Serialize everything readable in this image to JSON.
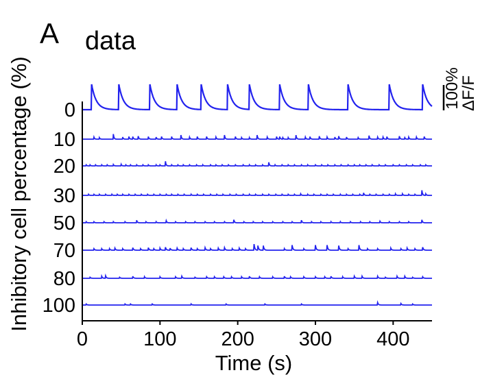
{
  "panel_label": "A",
  "chart_data": {
    "type": "line",
    "title": "data",
    "xlabel": "Time (s)",
    "ylabel": "Inhibitory cell percentage (%)",
    "xlim": [
      0,
      450
    ],
    "x_ticks": [
      0,
      100,
      200,
      300,
      400
    ],
    "scale_bar": {
      "value_label": "100%",
      "unit_label": "ΔF/F",
      "percent": 100
    },
    "line_color": "#2222ee",
    "series": [
      {
        "name": "0",
        "peak_percent": 100,
        "decay_s": 6,
        "spikes": [
          [
            12,
            100
          ],
          [
            47,
            100
          ],
          [
            87,
            100
          ],
          [
            122,
            100
          ],
          [
            153,
            100
          ],
          [
            187,
            100
          ],
          [
            215,
            100
          ],
          [
            254,
            100
          ],
          [
            291,
            100
          ],
          [
            342,
            100
          ],
          [
            395,
            100
          ],
          [
            438,
            100
          ]
        ]
      },
      {
        "name": "10",
        "peak_percent": 20,
        "decay_s": 0.8,
        "spikes": [
          [
            15,
            0.4
          ],
          [
            22,
            0.3
          ],
          [
            40,
            1.0
          ],
          [
            52,
            0.4
          ],
          [
            60,
            0.5
          ],
          [
            65,
            0.5
          ],
          [
            72,
            0.6
          ],
          [
            85,
            0.5
          ],
          [
            95,
            0.4
          ],
          [
            102,
            0.5
          ],
          [
            115,
            0.5
          ],
          [
            127,
            0.8
          ],
          [
            138,
            0.4
          ],
          [
            148,
            0.5
          ],
          [
            160,
            0.5
          ],
          [
            172,
            0.4
          ],
          [
            183,
            0.8
          ],
          [
            197,
            0.5
          ],
          [
            205,
            0.3
          ],
          [
            215,
            0.3
          ],
          [
            225,
            0.8
          ],
          [
            238,
            0.4
          ],
          [
            250,
            0.5
          ],
          [
            254,
            0.5
          ],
          [
            258,
            0.3
          ],
          [
            265,
            0.3
          ],
          [
            275,
            0.8
          ],
          [
            287,
            0.4
          ],
          [
            293,
            0.5
          ],
          [
            305,
            0.6
          ],
          [
            315,
            0.4
          ],
          [
            325,
            0.4
          ],
          [
            330,
            0.6
          ],
          [
            340,
            0.4
          ],
          [
            355,
            0.3
          ],
          [
            369,
            0.7
          ],
          [
            380,
            0.4
          ],
          [
            387,
            0.4
          ],
          [
            392,
            0.5
          ],
          [
            408,
            0.6
          ],
          [
            415,
            0.3
          ],
          [
            420,
            0.4
          ],
          [
            430,
            0.4
          ],
          [
            440,
            0.5
          ]
        ]
      },
      {
        "name": "20",
        "peak_percent": 20,
        "decay_s": 0.8,
        "spikes": [
          [
            5,
            0.2
          ],
          [
            10,
            0.2
          ],
          [
            17,
            0.2
          ],
          [
            25,
            0.2
          ],
          [
            32,
            0.2
          ],
          [
            40,
            0.25
          ],
          [
            50,
            0.3
          ],
          [
            56,
            0.2
          ],
          [
            62,
            0.2
          ],
          [
            70,
            0.2
          ],
          [
            78,
            0.2
          ],
          [
            85,
            0.2
          ],
          [
            95,
            0.2
          ],
          [
            100,
            0.2
          ],
          [
            107,
            0.9
          ],
          [
            115,
            0.2
          ],
          [
            123,
            0.2
          ],
          [
            130,
            0.2
          ],
          [
            138,
            0.2
          ],
          [
            147,
            0.2
          ],
          [
            155,
            0.2
          ],
          [
            165,
            0.2
          ],
          [
            172,
            0.2
          ],
          [
            180,
            0.2
          ],
          [
            188,
            0.2
          ],
          [
            197,
            0.2
          ],
          [
            207,
            0.2
          ],
          [
            215,
            0.2
          ],
          [
            223,
            0.2
          ],
          [
            232,
            0.2
          ],
          [
            240,
            0.7
          ],
          [
            248,
            0.2
          ],
          [
            257,
            0.2
          ],
          [
            265,
            0.2
          ],
          [
            273,
            0.2
          ],
          [
            282,
            0.2
          ],
          [
            290,
            0.2
          ],
          [
            300,
            0.2
          ],
          [
            308,
            0.2
          ],
          [
            316,
            0.2
          ],
          [
            325,
            0.2
          ],
          [
            333,
            0.2
          ],
          [
            342,
            0.2
          ],
          [
            350,
            0.2
          ],
          [
            357,
            0.2
          ],
          [
            365,
            0.2
          ],
          [
            373,
            0.2
          ],
          [
            382,
            0.2
          ],
          [
            390,
            0.2
          ],
          [
            400,
            0.2
          ],
          [
            408,
            0.2
          ],
          [
            417,
            0.2
          ],
          [
            425,
            0.2
          ],
          [
            435,
            0.2
          ],
          [
            442,
            0.2
          ]
        ]
      },
      {
        "name": "30",
        "peak_percent": 20,
        "decay_s": 0.8,
        "spikes": [
          [
            8,
            0.2
          ],
          [
            15,
            0.2
          ],
          [
            22,
            0.2
          ],
          [
            30,
            0.2
          ],
          [
            38,
            0.2
          ],
          [
            45,
            0.2
          ],
          [
            52,
            0.2
          ],
          [
            60,
            0.2
          ],
          [
            68,
            0.2
          ],
          [
            76,
            0.2
          ],
          [
            84,
            0.2
          ],
          [
            92,
            0.2
          ],
          [
            100,
            0.2
          ],
          [
            108,
            0.2
          ],
          [
            115,
            0.2
          ],
          [
            123,
            0.2
          ],
          [
            131,
            0.2
          ],
          [
            140,
            0.2
          ],
          [
            148,
            0.2
          ],
          [
            156,
            0.2
          ],
          [
            165,
            0.2
          ],
          [
            173,
            0.2
          ],
          [
            181,
            0.2
          ],
          [
            190,
            0.2
          ],
          [
            198,
            0.2
          ],
          [
            207,
            0.2
          ],
          [
            215,
            0.2
          ],
          [
            223,
            0.2
          ],
          [
            232,
            0.2
          ],
          [
            240,
            0.2
          ],
          [
            249,
            0.2
          ],
          [
            257,
            0.2
          ],
          [
            265,
            0.2
          ],
          [
            273,
            0.2
          ],
          [
            281,
            0.3
          ],
          [
            290,
            0.2
          ],
          [
            298,
            0.2
          ],
          [
            307,
            0.2
          ],
          [
            315,
            0.2
          ],
          [
            323,
            0.2
          ],
          [
            332,
            0.2
          ],
          [
            340,
            0.2
          ],
          [
            348,
            0.2
          ],
          [
            357,
            0.2
          ],
          [
            362,
            0.5
          ],
          [
            370,
            0.2
          ],
          [
            378,
            0.2
          ],
          [
            387,
            0.2
          ],
          [
            395,
            0.2
          ],
          [
            403,
            0.3
          ],
          [
            412,
            0.3
          ],
          [
            420,
            0.2
          ],
          [
            428,
            0.2
          ],
          [
            437,
            1.0
          ],
          [
            442,
            0.3
          ]
        ]
      },
      {
        "name": "50",
        "peak_percent": 20,
        "decay_s": 0.8,
        "spikes": [
          [
            5,
            0.2
          ],
          [
            15,
            0.2
          ],
          [
            28,
            0.2
          ],
          [
            40,
            0.2
          ],
          [
            55,
            0.2
          ],
          [
            70,
            0.5
          ],
          [
            82,
            0.2
          ],
          [
            95,
            0.2
          ],
          [
            108,
            0.4
          ],
          [
            120,
            0.2
          ],
          [
            133,
            0.2
          ],
          [
            145,
            0.2
          ],
          [
            158,
            0.2
          ],
          [
            170,
            0.2
          ],
          [
            183,
            0.2
          ],
          [
            195,
            0.6
          ],
          [
            208,
            0.2
          ],
          [
            220,
            0.2
          ],
          [
            232,
            0.2
          ],
          [
            245,
            0.2
          ],
          [
            258,
            0.2
          ],
          [
            270,
            0.2
          ],
          [
            282,
            0.5
          ],
          [
            295,
            0.2
          ],
          [
            307,
            0.2
          ],
          [
            320,
            0.2
          ],
          [
            332,
            0.2
          ],
          [
            345,
            0.2
          ],
          [
            358,
            0.2
          ],
          [
            370,
            0.2
          ],
          [
            383,
            0.3
          ],
          [
            395,
            0.2
          ],
          [
            408,
            0.2
          ],
          [
            420,
            0.2
          ],
          [
            437,
            0.6
          ]
        ]
      },
      {
        "name": "70",
        "peak_percent": 20,
        "decay_s": 1.0,
        "spikes": [
          [
            15,
            0.3
          ],
          [
            25,
            0.3
          ],
          [
            35,
            0.3
          ],
          [
            42,
            0.4
          ],
          [
            52,
            0.3
          ],
          [
            65,
            0.5
          ],
          [
            75,
            0.3
          ],
          [
            85,
            0.5
          ],
          [
            92,
            0.3
          ],
          [
            100,
            0.4
          ],
          [
            107,
            0.6
          ],
          [
            113,
            0.4
          ],
          [
            122,
            0.4
          ],
          [
            130,
            0.3
          ],
          [
            140,
            0.5
          ],
          [
            148,
            0.3
          ],
          [
            158,
            0.5
          ],
          [
            165,
            0.3
          ],
          [
            175,
            0.4
          ],
          [
            183,
            0.5
          ],
          [
            193,
            0.3
          ],
          [
            202,
            0.4
          ],
          [
            210,
            0.3
          ],
          [
            221,
            1.2
          ],
          [
            226,
            0.9
          ],
          [
            233,
            0.9
          ],
          [
            260,
            0.3
          ],
          [
            270,
            1.0
          ],
          [
            285,
            0.3
          ],
          [
            300,
            1.0
          ],
          [
            315,
            1.0
          ],
          [
            330,
            0.9
          ],
          [
            342,
            0.3
          ],
          [
            356,
            1.0
          ],
          [
            367,
            0.3
          ],
          [
            380,
            0.3
          ],
          [
            397,
            0.4
          ],
          [
            410,
            0.3
          ],
          [
            418,
            0.4
          ],
          [
            428,
            0.3
          ],
          [
            438,
            0.6
          ]
        ]
      },
      {
        "name": "80",
        "peak_percent": 20,
        "decay_s": 1.0,
        "spikes": [
          [
            10,
            0.2
          ],
          [
            25,
            0.4
          ],
          [
            30,
            0.5
          ],
          [
            48,
            0.2
          ],
          [
            65,
            0.4
          ],
          [
            80,
            0.3
          ],
          [
            100,
            0.3
          ],
          [
            120,
            0.3
          ],
          [
            128,
            0.4
          ],
          [
            145,
            0.2
          ],
          [
            160,
            0.3
          ],
          [
            170,
            0.3
          ],
          [
            182,
            0.3
          ],
          [
            192,
            0.3
          ],
          [
            205,
            0.3
          ],
          [
            215,
            0.4
          ],
          [
            228,
            0.3
          ],
          [
            245,
            0.3
          ],
          [
            260,
            0.4
          ],
          [
            268,
            0.3
          ],
          [
            285,
            0.3
          ],
          [
            300,
            0.3
          ],
          [
            312,
            0.3
          ],
          [
            320,
            0.4
          ],
          [
            335,
            0.3
          ],
          [
            350,
            0.4
          ],
          [
            360,
            0.4
          ],
          [
            380,
            0.4
          ],
          [
            390,
            0.2
          ],
          [
            405,
            0.4
          ],
          [
            415,
            0.4
          ],
          [
            425,
            0.2
          ],
          [
            438,
            0.3
          ]
        ]
      },
      {
        "name": "100",
        "peak_percent": 20,
        "decay_s": 1.0,
        "spikes": [
          [
            5,
            0.2
          ],
          [
            55,
            0.2
          ],
          [
            62,
            0.2
          ],
          [
            90,
            0.2
          ],
          [
            140,
            0.2
          ],
          [
            185,
            0.2
          ],
          [
            235,
            0.2
          ],
          [
            282,
            0.2
          ],
          [
            380,
            0.5
          ],
          [
            410,
            0.3
          ],
          [
            425,
            0.2
          ]
        ]
      }
    ]
  }
}
